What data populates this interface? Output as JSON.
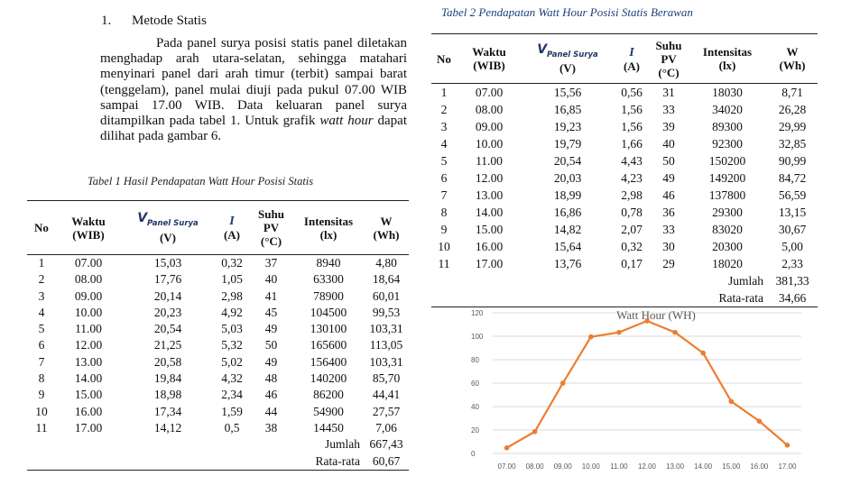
{
  "section": {
    "number": "1.",
    "title": "Metode Statis"
  },
  "paragraph": {
    "part1": "Pada panel surya posisi statis panel diletakan menghadap arah utara-selatan, sehingga matahari menyinari panel dari arah timur (terbit) sampai barat (tenggelam), panel mulai diuji pada pukul 07.00 WIB sampai 17.00 WIB. Data keluaran panel surya ditampilkan pada tabel 1. Untuk grafik ",
    "emph": "watt hour",
    "part2": " dapat dilihat pada gambar 6."
  },
  "table1": {
    "caption": "Tabel 1  Hasil Pendapatan Watt Hour Posisi Statis",
    "headers": {
      "no": "No",
      "waktu": "Waktu",
      "waktu_unit": "(WIB)",
      "v_main": "V",
      "v_sub": "Panel Surya",
      "v_unit": "(V)",
      "i": "I",
      "i_unit": "(A)",
      "suhu": "Suhu",
      "suhu2": "PV",
      "suhu_unit": "(°C)",
      "intensitas": "Intensitas",
      "intensitas_unit": "(lx)",
      "w": "W",
      "w_unit": "(Wh)"
    },
    "rows": [
      [
        "1",
        "07.00",
        "15,03",
        "0,32",
        "37",
        "8940",
        "4,80"
      ],
      [
        "2",
        "08.00",
        "17,76",
        "1,05",
        "40",
        "63300",
        "18,64"
      ],
      [
        "3",
        "09.00",
        "20,14",
        "2,98",
        "41",
        "78900",
        "60,01"
      ],
      [
        "4",
        "10.00",
        "20,23",
        "4,92",
        "45",
        "104500",
        "99,53"
      ],
      [
        "5",
        "11.00",
        "20,54",
        "5,03",
        "49",
        "130100",
        "103,31"
      ],
      [
        "6",
        "12.00",
        "21,25",
        "5,32",
        "50",
        "165600",
        "113,05"
      ],
      [
        "7",
        "13.00",
        "20,58",
        "5,02",
        "49",
        "156400",
        "103,31"
      ],
      [
        "8",
        "14.00",
        "19,84",
        "4,32",
        "48",
        "140200",
        "85,70"
      ],
      [
        "9",
        "15.00",
        "18,98",
        "2,34",
        "46",
        "86200",
        "44,41"
      ],
      [
        "10",
        "16.00",
        "17,34",
        "1,59",
        "44",
        "54900",
        "27,57"
      ],
      [
        "11",
        "17.00",
        "14,12",
        "0,5",
        "38",
        "14450",
        "7,06"
      ]
    ],
    "jumlah_label": "Jumlah",
    "jumlah_value": "667,43",
    "rata_label": "Rata-rata",
    "rata_value": "60,67"
  },
  "table2": {
    "caption": "Tabel 2 Pendapatan Watt Hour Posisi Statis Berawan",
    "headers": {
      "no": "No",
      "waktu": "Waktu",
      "waktu_unit": "(WIB)",
      "v_main": "V",
      "v_sub": "Panel Surya",
      "v_unit": "(V)",
      "i": "I",
      "i_unit": "(A)",
      "suhu": "Suhu",
      "suhu2": "PV",
      "suhu_unit": "(°C)",
      "intensitas": "Intensitas",
      "intensitas_unit": "(lx)",
      "w": "W",
      "w_unit": "(Wh)"
    },
    "rows": [
      [
        "1",
        "07.00",
        "15,56",
        "0,56",
        "31",
        "18030",
        "8,71"
      ],
      [
        "2",
        "08.00",
        "16,85",
        "1,56",
        "33",
        "34020",
        "26,28"
      ],
      [
        "3",
        "09.00",
        "19,23",
        "1,56",
        "39",
        "89300",
        "29,99"
      ],
      [
        "4",
        "10.00",
        "19,79",
        "1,66",
        "40",
        "92300",
        "32,85"
      ],
      [
        "5",
        "11.00",
        "20,54",
        "4,43",
        "50",
        "150200",
        "90,99"
      ],
      [
        "6",
        "12.00",
        "20,03",
        "4,23",
        "49",
        "149200",
        "84,72"
      ],
      [
        "7",
        "13.00",
        "18,99",
        "2,98",
        "46",
        "137800",
        "56,59"
      ],
      [
        "8",
        "14.00",
        "16,86",
        "0,78",
        "36",
        "29300",
        "13,15"
      ],
      [
        "9",
        "15.00",
        "14,82",
        "2,07",
        "33",
        "83020",
        "30,67"
      ],
      [
        "10",
        "16.00",
        "15,64",
        "0,32",
        "30",
        "20300",
        "5,00"
      ],
      [
        "11",
        "17.00",
        "13,76",
        "0,17",
        "29",
        "18020",
        "2,33"
      ]
    ],
    "jumlah_label": "Jumlah",
    "jumlah_value": "381,33",
    "rata_label": "Rata-rata",
    "rata_value": "34,66"
  },
  "chart_data": {
    "type": "line",
    "title": "Watt Hour (WH)",
    "categories": [
      "07.00",
      "08.00",
      "09.00",
      "10.00",
      "11.00",
      "12.00",
      "13.00",
      "14.00",
      "15.00",
      "16.00",
      "17.00"
    ],
    "series": [
      {
        "values": [
          4.8,
          18.64,
          60.01,
          99.53,
          103.31,
          113.05,
          103.31,
          85.7,
          44.41,
          27.57,
          7.06
        ]
      }
    ],
    "ylim": [
      0,
      120
    ],
    "yticks": [
      "0",
      "20",
      "40",
      "60",
      "80",
      "100",
      "120"
    ],
    "grid": true,
    "line_color": "#ed7d31",
    "grid_color": "#d9d9d9",
    "axis_text_color": "#595959"
  }
}
